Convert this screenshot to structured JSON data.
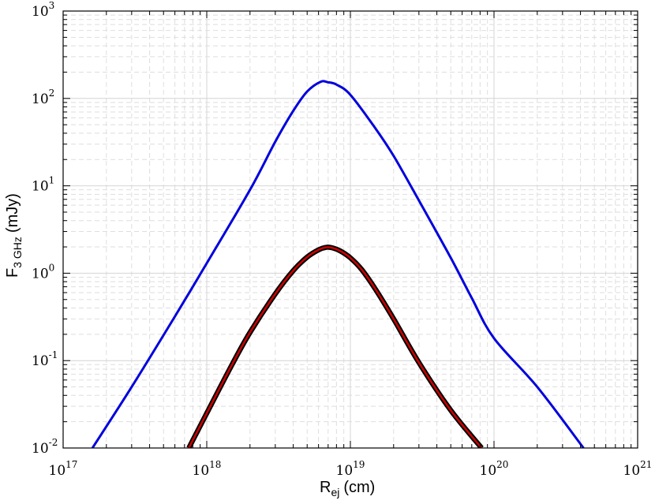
{
  "chart_data": {
    "type": "line",
    "title": "",
    "xlabel": {
      "main": "R",
      "sub": "ej",
      "unit": "(cm)"
    },
    "ylabel": {
      "main": "F",
      "sub": "3 GHz",
      "unit": "(mJy)"
    },
    "x_scale": "log",
    "y_scale": "log",
    "xlim": [
      1e+17,
      1e+21
    ],
    "ylim": [
      0.01,
      1000
    ],
    "grid": true,
    "x_ticks": [
      {
        "base": "10",
        "exp": "17",
        "value": 1e+17
      },
      {
        "base": "10",
        "exp": "18",
        "value": 1e+18
      },
      {
        "base": "10",
        "exp": "19",
        "value": 1e+19
      },
      {
        "base": "10",
        "exp": "20",
        "value": 1e+20
      },
      {
        "base": "10",
        "exp": "21",
        "value": 1e+21
      }
    ],
    "y_ticks": [
      {
        "base": "10",
        "exp": "-2",
        "value": 0.01
      },
      {
        "base": "10",
        "exp": "-1",
        "value": 0.1
      },
      {
        "base": "10",
        "exp": "0",
        "value": 1
      },
      {
        "base": "10",
        "exp": "1",
        "value": 10
      },
      {
        "base": "10",
        "exp": "2",
        "value": 100
      },
      {
        "base": "10",
        "exp": "3",
        "value": 1000
      }
    ],
    "series": [
      {
        "color": "#0000dd",
        "points": [
          [
            1.6e+17,
            0.01
          ],
          [
            3e+17,
            0.05
          ],
          [
            6e+17,
            0.32
          ],
          [
            1e+18,
            1.3
          ],
          [
            2e+18,
            9
          ],
          [
            3e+18,
            32
          ],
          [
            4e+18,
            72
          ],
          [
            5e+18,
            120
          ],
          [
            6.2e+18,
            155
          ],
          [
            7e+18,
            153
          ],
          [
            8e+18,
            144
          ],
          [
            1e+19,
            110
          ],
          [
            1.5e+19,
            45
          ],
          [
            2e+19,
            22
          ],
          [
            3e+19,
            6.8
          ],
          [
            5e+19,
            1.5
          ],
          [
            7e+19,
            0.52
          ],
          [
            1e+20,
            0.18
          ],
          [
            2e+20,
            0.05
          ],
          [
            4.2e+20,
            0.01
          ]
        ]
      },
      {
        "color": "#cc0000",
        "outline": "#000000",
        "points": [
          [
            7.5e+17,
            0.01
          ],
          [
            1e+18,
            0.025
          ],
          [
            1.5e+18,
            0.09
          ],
          [
            2e+18,
            0.21
          ],
          [
            3e+18,
            0.58
          ],
          [
            4e+18,
            1.07
          ],
          [
            5e+18,
            1.53
          ],
          [
            6e+18,
            1.85
          ],
          [
            6.8e+18,
            1.98
          ],
          [
            7.5e+18,
            1.95
          ],
          [
            8.5e+18,
            1.8
          ],
          [
            1e+19,
            1.5
          ],
          [
            1.2e+19,
            1.1
          ],
          [
            1.5e+19,
            0.65
          ],
          [
            2e+19,
            0.3
          ],
          [
            3e+19,
            0.095
          ],
          [
            5e+19,
            0.027
          ],
          [
            8.2e+19,
            0.01
          ]
        ]
      }
    ]
  }
}
